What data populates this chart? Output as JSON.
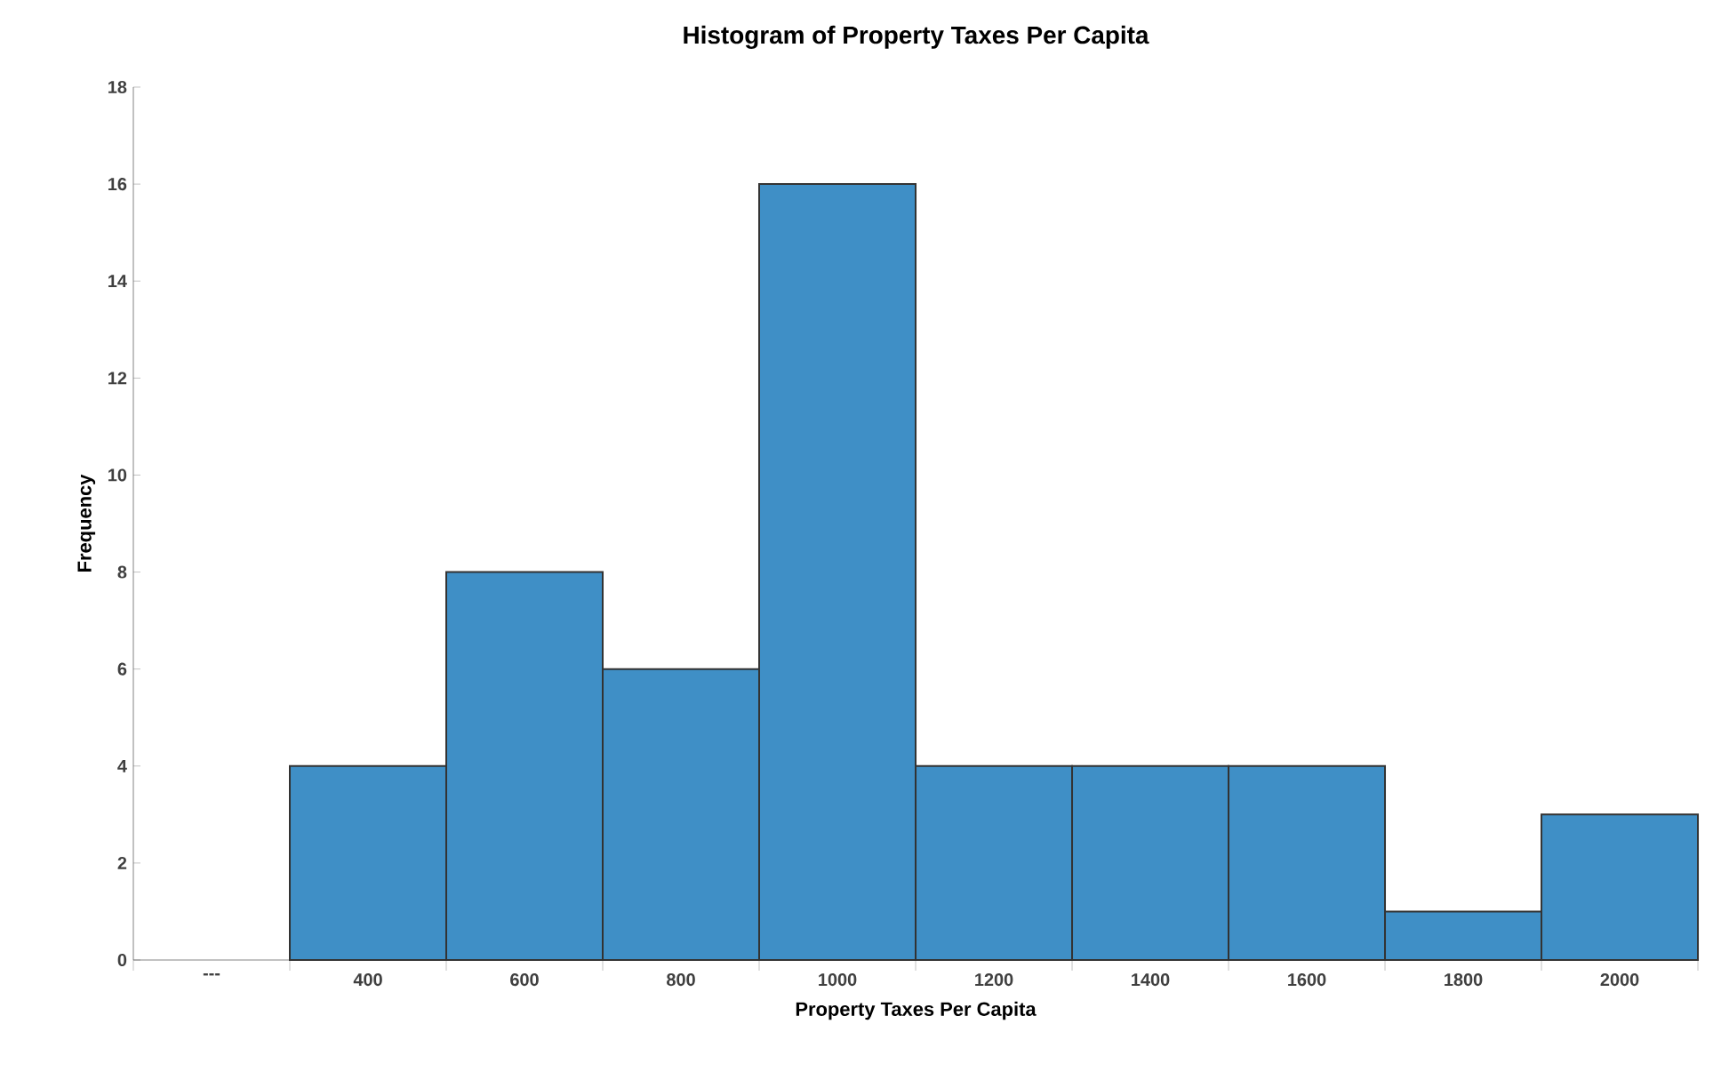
{
  "chart_data": {
    "type": "bar",
    "title": "Histogram of Property Taxes Per Capita",
    "xlabel": "Property Taxes Per Capita",
    "ylabel": "Frequency",
    "categories": [
      "---",
      "400",
      "600",
      "800",
      "1000",
      "1200",
      "1400",
      "1600",
      "1800",
      "2000"
    ],
    "values": [
      null,
      4,
      8,
      6,
      16,
      4,
      4,
      4,
      1,
      3
    ],
    "color": "#3f8fc6",
    "ylim": [
      0,
      18
    ],
    "yticks": [
      0,
      2,
      4,
      6,
      8,
      10,
      12,
      14,
      16,
      18
    ]
  }
}
